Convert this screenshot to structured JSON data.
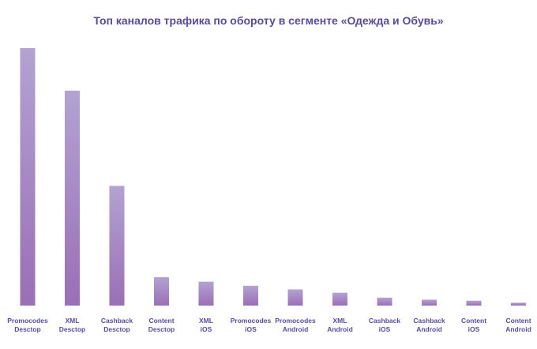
{
  "chart_data": {
    "type": "bar",
    "title": "Топ каналов трафика по обороту в сегменте «Одежда и Обувь»",
    "xlabel": "",
    "ylabel": "",
    "categories": [
      [
        "Promocodes",
        "Desctop"
      ],
      [
        "XML",
        "Desctop"
      ],
      [
        "Cashback",
        "Desctop"
      ],
      [
        "Content",
        "Desctop"
      ],
      [
        "XML",
        "iOS"
      ],
      [
        "Promocodes",
        "iOS"
      ],
      [
        "Promocodes",
        "Android"
      ],
      [
        "XML",
        "Android"
      ],
      [
        "Cashback",
        "iOS"
      ],
      [
        "Cashback",
        "Android"
      ],
      [
        "Content",
        "iOS"
      ],
      [
        "Content",
        "Android"
      ]
    ],
    "values": [
      100,
      83.5,
      46.5,
      11,
      9.3,
      7.7,
      6.3,
      5,
      3.1,
      2.3,
      1.9,
      1.1
    ],
    "ylim": [
      0,
      100
    ],
    "grid": false,
    "legend": "none",
    "colors": {
      "bar_top": "#b3a2d2",
      "bar_bottom": "#9a6fb6",
      "title": "#5a4b9a",
      "labels": "#5a4b9a"
    }
  }
}
